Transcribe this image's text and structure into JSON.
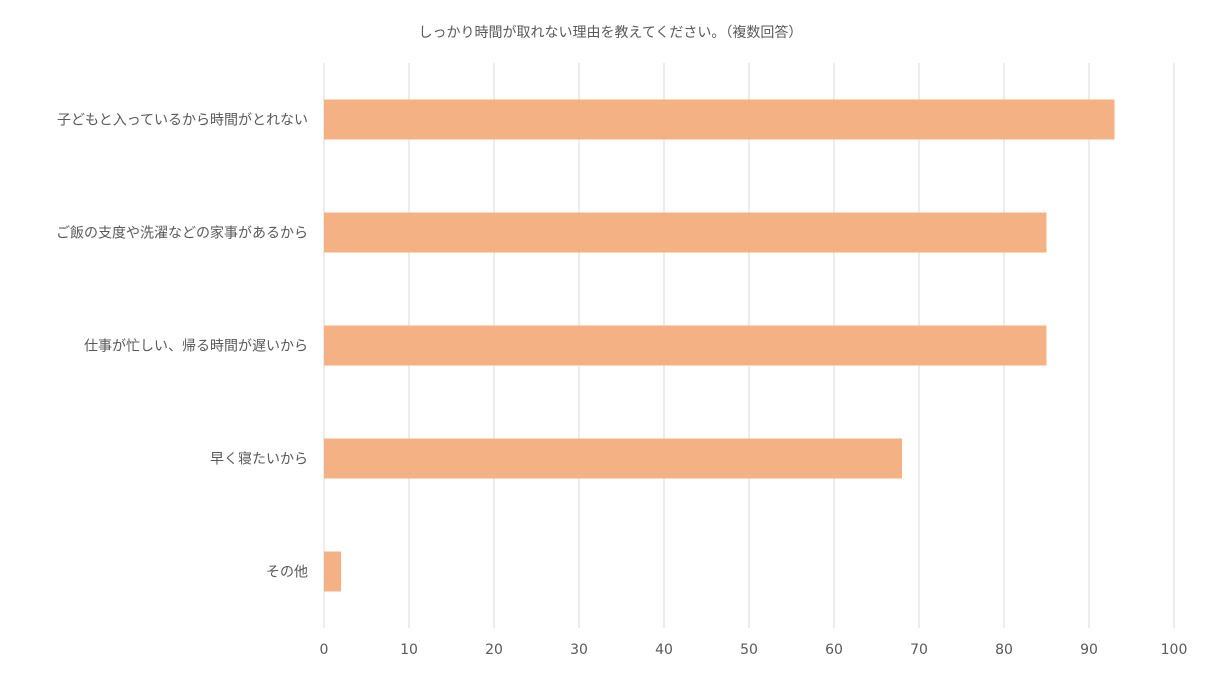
{
  "chart_data": {
    "type": "bar",
    "orientation": "horizontal",
    "title": "しっかり時間が取れない理由を教えてください。（複数回答）",
    "categories": [
      "子どもと入っているから時間がとれない",
      "ご飯の支度や洗濯などの家事があるから",
      "仕事が忙しい、帰る時間が遅いから",
      "早く寝たいから",
      "その他"
    ],
    "values": [
      93,
      85,
      85,
      68,
      2
    ],
    "xlim": [
      0,
      100
    ],
    "xticks": [
      "0",
      "10",
      "20",
      "30",
      "40",
      "50",
      "60",
      "70",
      "80",
      "90",
      "100"
    ],
    "grid": true,
    "legend": "none",
    "bar_color": "#F4B183",
    "grid_color": "#D9D9D9",
    "text_color": "#595959"
  }
}
